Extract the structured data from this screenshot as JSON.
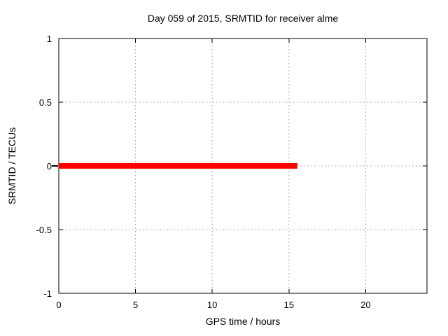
{
  "chart_data": {
    "type": "line",
    "title": "Day 059 of 2015, SRMTID for receiver alme",
    "xlabel": "GPS time / hours",
    "ylabel": "SRMTID / TECUs",
    "xlim": [
      0,
      24
    ],
    "ylim": [
      -1,
      1
    ],
    "xticks": [
      0,
      5,
      10,
      15,
      20
    ],
    "xtick_labels": [
      "0",
      "5",
      "10",
      "15",
      "20"
    ],
    "yticks": [
      1,
      0.5,
      0,
      -0.5,
      -1
    ],
    "ytick_labels": [
      "1",
      "0.5",
      "0",
      "-0.5",
      "-1"
    ],
    "grid": true,
    "legend": "none",
    "series": [
      {
        "name": "SRMTID",
        "color": "#ff0000",
        "linewidth": 8,
        "x": [
          0,
          15.55
        ],
        "y": [
          0,
          0
        ]
      }
    ],
    "colors": {
      "border": "#000000",
      "grid": "#999999",
      "text": "#000000",
      "background": "#ffffff"
    }
  }
}
